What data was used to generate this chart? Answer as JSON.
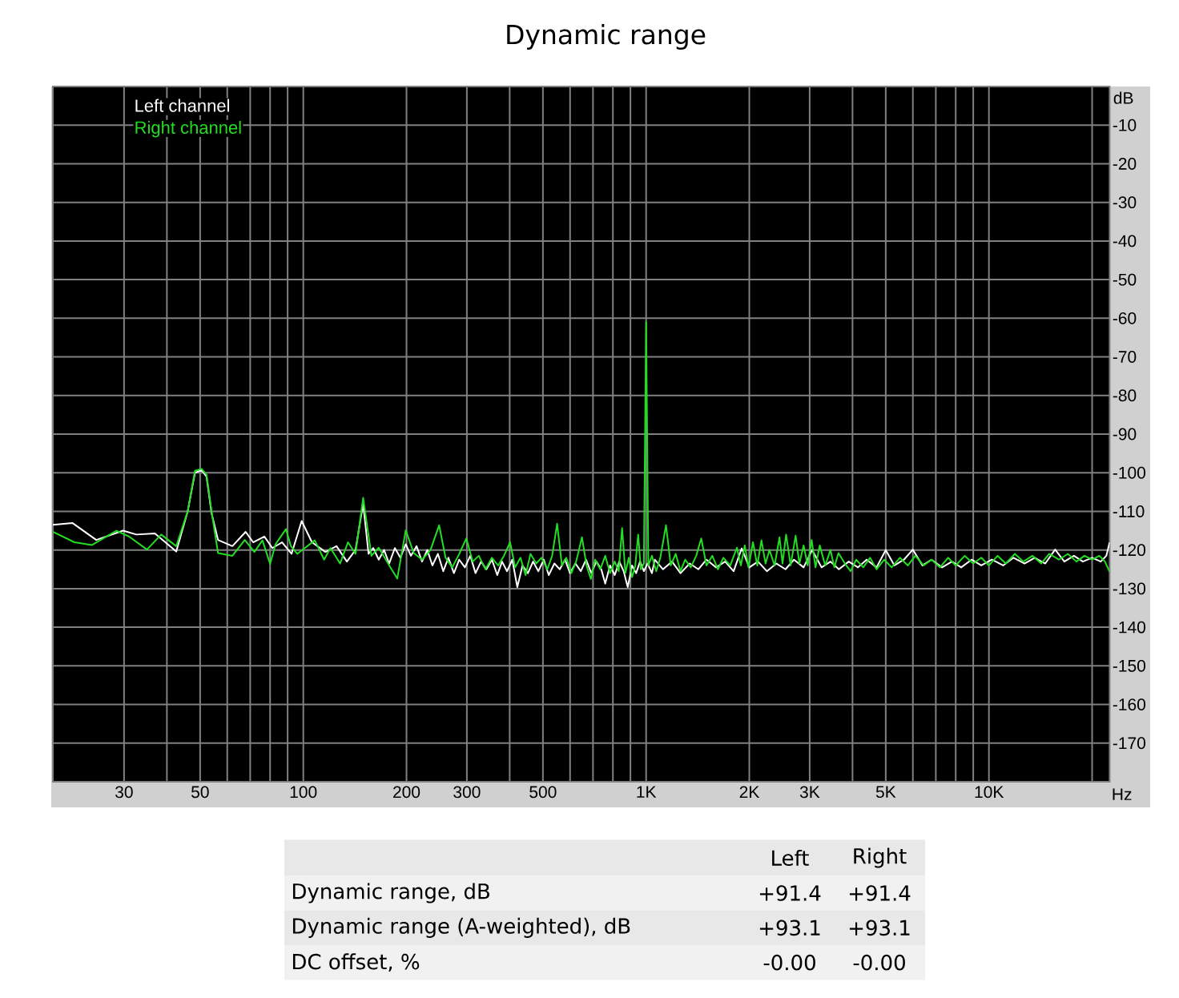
{
  "chart_data": {
    "type": "line",
    "title": "Dynamic range",
    "xlabel": "Hz",
    "ylabel": "dB",
    "log": "x",
    "grid": true,
    "legend": "top left",
    "xlim": [
      18.6,
      22500
    ],
    "ylim": [
      -180,
      0
    ],
    "xticks": [
      30,
      {
        "value": 40,
        "label": null
      },
      50,
      {
        "value": 60,
        "label": null
      },
      {
        "value": 70,
        "label": null
      },
      {
        "value": 80,
        "label": null
      },
      {
        "value": 90,
        "label": null
      },
      100,
      200,
      300,
      {
        "value": 400,
        "label": null
      },
      500,
      {
        "value": 600,
        "label": null
      },
      {
        "value": 700,
        "label": null
      },
      {
        "value": 800,
        "label": null
      },
      {
        "value": 900,
        "label": null
      },
      {
        "value": 1000,
        "label": "1K"
      },
      {
        "value": 2000,
        "label": "2K"
      },
      {
        "value": 3000,
        "label": "3K"
      },
      {
        "value": 4000,
        "label": null
      },
      {
        "value": 5000,
        "label": "5K"
      },
      {
        "value": 6000,
        "label": null
      },
      {
        "value": 7000,
        "label": null
      },
      {
        "value": 8000,
        "label": null
      },
      {
        "value": 9000,
        "label": null
      },
      {
        "value": 10000,
        "label": "10K"
      },
      {
        "value": 20000,
        "label": null
      }
    ],
    "yticks": [
      -10,
      -20,
      -30,
      -40,
      -50,
      -60,
      -70,
      -80,
      -90,
      -100,
      -110,
      -120,
      -130,
      -140,
      -150,
      -160,
      -170
    ],
    "series": [
      {
        "name": "Left channel",
        "color": "#ffffff",
        "x": [
          18.6,
          21.2,
          24.9,
          29.8,
          32.6,
          36.9,
          42.6,
          46,
          48.3,
          50.5,
          52.2,
          54,
          56.4,
          62.1,
          67.9,
          71.4,
          77,
          81.2,
          86.7,
          92.4,
          98.9,
          106,
          116,
          125,
          134,
          142,
          149.5,
          155,
          160,
          166,
          172,
          178,
          185,
          192,
          199,
          206,
          214,
          222,
          230,
          238,
          247,
          256,
          265,
          275,
          285,
          296,
          307,
          318,
          330,
          342,
          355,
          368,
          380,
          393,
          407,
          421,
          436,
          452,
          468,
          485,
          503,
          520,
          540,
          560,
          580,
          600,
          622,
          645,
          668,
          692,
          716,
          740,
          760,
          785,
          810,
          835,
          860,
          884,
          910,
          935,
          960,
          985,
          1010,
          1040,
          1060,
          1120,
          1190,
          1260,
          1340,
          1420,
          1500,
          1600,
          1700,
          1800,
          1900,
          2000,
          2120,
          2250,
          2400,
          2550,
          2700,
          2880,
          3050,
          3250,
          3450,
          3650,
          3900,
          4150,
          4400,
          4700,
          5000,
          5300,
          5650,
          6000,
          6400,
          6800,
          7300,
          7800,
          8300,
          8900,
          9500,
          10200,
          11000,
          11800,
          12700,
          13600,
          14600,
          15600,
          16600,
          17700,
          18800,
          20000,
          21200,
          22000,
          22500
        ],
        "values": [
          -113.5,
          -113,
          -117.4,
          -115,
          -116,
          -115.7,
          -120.4,
          -110,
          -100,
          -99.3,
          -101,
          -110.5,
          -117.4,
          -119,
          -115.3,
          -118,
          -116.5,
          -119.5,
          -118,
          -121,
          -112.5,
          -118,
          -120.5,
          -119,
          -123,
          -120,
          -108,
          -121,
          -119.5,
          -122.5,
          -120,
          -123.5,
          -119.5,
          -122,
          -118.5,
          -121.5,
          -119,
          -123,
          -120,
          -124,
          -121,
          -125.5,
          -122,
          -126,
          -122.5,
          -124.5,
          -121.5,
          -126,
          -123,
          -125,
          -122.5,
          -126.5,
          -123,
          -125.5,
          -122.5,
          -129.6,
          -124,
          -126,
          -123,
          -125.5,
          -122.5,
          -126.5,
          -123.5,
          -125,
          -122.5,
          -126,
          -123.5,
          -125.5,
          -122.5,
          -126,
          -123,
          -125,
          -128.7,
          -124,
          -126.5,
          -123,
          -125.5,
          -129.6,
          -124,
          -126,
          -123,
          -125.5,
          -123.5,
          -126,
          -122.5,
          -125,
          -123,
          -126,
          -123.5,
          -125,
          -122.5,
          -124.5,
          -123,
          -125.5,
          -119.6,
          -124.5,
          -123,
          -125.5,
          -123.5,
          -125,
          -122.5,
          -124.5,
          -120,
          -124.5,
          -123,
          -125,
          -123,
          -124.5,
          -122.5,
          -124.5,
          -120,
          -124,
          -122.5,
          -119.9,
          -124,
          -122.5,
          -124.5,
          -123,
          -124.5,
          -122.5,
          -124,
          -122.5,
          -124,
          -122,
          -123.5,
          -122,
          -123.5,
          -119.9,
          -123,
          -121.5,
          -123,
          -122,
          -123,
          -121.5,
          -118
        ]
      },
      {
        "name": "Right channel",
        "color": "#22dd22",
        "x": [
          18.6,
          21.5,
          24.2,
          28.5,
          31,
          35,
          38.5,
          42.6,
          46,
          48.3,
          50.5,
          52.2,
          54,
          56.4,
          62.1,
          67.5,
          72,
          76,
          80,
          83,
          89,
          92,
          96,
          101,
          108,
          115,
          120,
          128,
          135,
          142,
          149.5,
          158,
          166,
          179,
          188,
          199,
          210,
          222,
          235,
          249,
          260,
          272,
          285,
          299,
          312,
          325,
          340,
          355,
          370,
          385,
          401,
          415,
          430,
          445,
          460,
          478,
          495,
          515,
          532,
          550,
          568,
          585,
          605,
          625,
          650,
          670,
          690,
          710,
          735,
          760,
          785,
          810,
          832,
          851,
          870,
          890,
          910,
          930,
          948,
          965,
          985,
          1000,
          1015,
          1040,
          1070,
          1100,
          1143,
          1180,
          1220,
          1260,
          1300,
          1350,
          1400,
          1448,
          1500,
          1560,
          1620,
          1680,
          1760,
          1840,
          1890,
          1940,
          1990,
          2050,
          2110,
          2170,
          2230,
          2290,
          2370,
          2450,
          2500,
          2560,
          2640,
          2730,
          2800,
          2880,
          2960,
          3040,
          3120,
          3210,
          3330,
          3450,
          3540,
          3640,
          3800,
          3950,
          4100,
          4300,
          4500,
          4700,
          4950,
          5200,
          5500,
          5800,
          6100,
          6450,
          6800,
          7200,
          7600,
          8000,
          8500,
          9000,
          9500,
          10000,
          10600,
          11200,
          11900,
          12600,
          13400,
          14200,
          15000,
          16000,
          17000,
          18000,
          19000,
          20000,
          21000,
          21800,
          22500
        ],
        "values": [
          -115.3,
          -118,
          -118.7,
          -115,
          -116.5,
          -119.9,
          -116,
          -119,
          -110,
          -99.5,
          -99,
          -100.5,
          -110,
          -120.8,
          -121.5,
          -117.4,
          -120.5,
          -117.5,
          -123.6,
          -118.5,
          -114.6,
          -119,
          -121,
          -119.5,
          -117.5,
          -122.5,
          -119.5,
          -123.5,
          -118,
          -121,
          -106.5,
          -121.5,
          -119.4,
          -124.3,
          -127.4,
          -114.9,
          -120.8,
          -122.5,
          -120,
          -113.6,
          -122,
          -124.5,
          -121,
          -117,
          -123,
          -121.5,
          -125,
          -122,
          -124,
          -121.5,
          -118,
          -124.5,
          -122,
          -126.5,
          -121,
          -123.5,
          -122,
          -125,
          -121.5,
          -113.2,
          -124,
          -122,
          -126,
          -123,
          -116.7,
          -124,
          -127.5,
          -122.5,
          -125,
          -121.5,
          -126,
          -123,
          -125.5,
          -114.3,
          -126,
          -122,
          -127,
          -124,
          -116,
          -125,
          -123.5,
          -61,
          -124,
          -121.5,
          -125.5,
          -122,
          -113.6,
          -124,
          -121,
          -125.5,
          -122.5,
          -124.5,
          -121.5,
          -117,
          -124,
          -121.5,
          -125,
          -122,
          -124,
          -119.4,
          -124,
          -118.8,
          -124.5,
          -118,
          -124,
          -117.5,
          -123.5,
          -120,
          -124,
          -116.7,
          -123.5,
          -116,
          -124,
          -116.3,
          -123.5,
          -118.8,
          -124,
          -117.4,
          -124.5,
          -118.8,
          -124,
          -120,
          -124.5,
          -120.8,
          -123.5,
          -125.5,
          -122.5,
          -124.5,
          -122,
          -125,
          -122.5,
          -124.5,
          -122,
          -124,
          -121.5,
          -124,
          -122.5,
          -124.5,
          -122,
          -124,
          -121.5,
          -123.5,
          -122,
          -124,
          -121.5,
          -123.5,
          -121,
          -123,
          -121.5,
          -123.5,
          -121,
          -122.5,
          -121,
          -123,
          -121.5,
          -122.5,
          -121.5,
          -123,
          -125.7
        ]
      }
    ],
    "annotations": [
      "Left",
      "Right",
      "Dynamic range, dB",
      "+91.4",
      "+91.4",
      "Dynamic range (A-weighted), dB",
      "+93.1",
      "+93.1",
      "DC offset, %",
      "-0.00",
      "-0.00"
    ]
  }
}
